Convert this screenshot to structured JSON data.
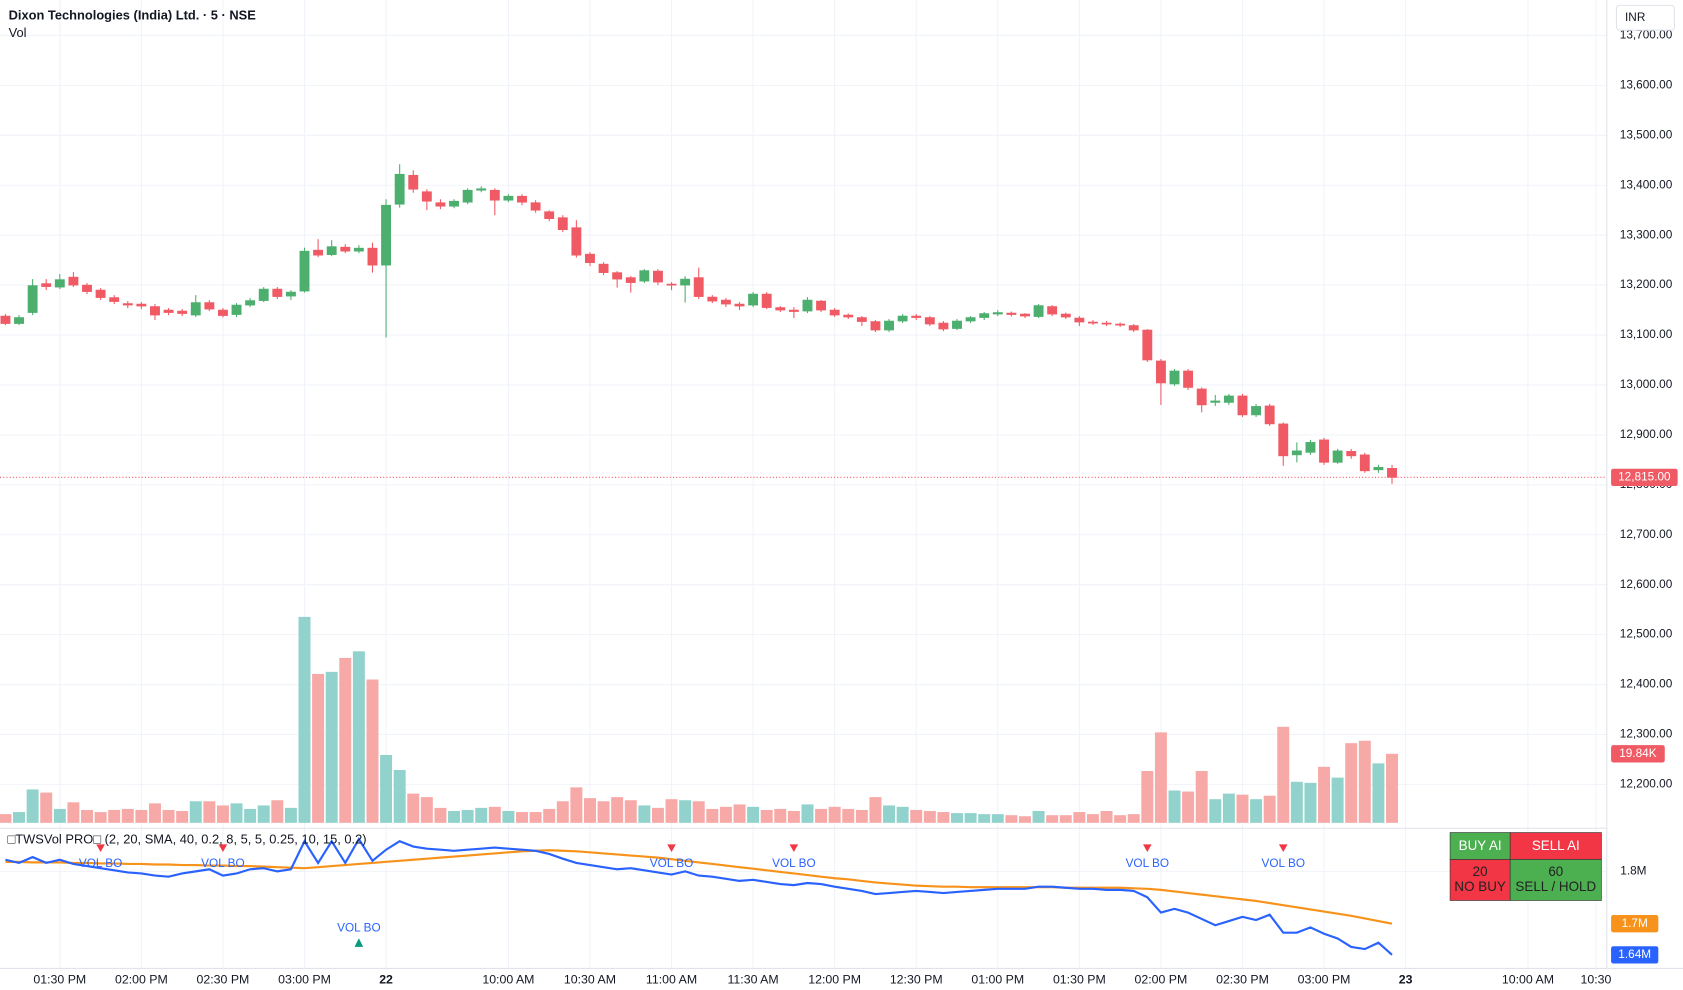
{
  "chart_data": [
    {
      "type": "candlestick",
      "title": "Dixon Technologies (India) Ltd. · 5 · NSE",
      "volume_title": "Vol",
      "currency": "INR",
      "open": [
        13138,
        13123,
        13145,
        13203,
        13196,
        13216,
        13200,
        13190,
        13175,
        13163,
        13162,
        13157,
        13150,
        13148,
        13140,
        13165,
        13150,
        13141,
        13160,
        13169,
        13192,
        13178,
        13188,
        13270,
        13261,
        13276,
        13268,
        13274,
        13240,
        13362,
        13420,
        13387,
        13365,
        13358,
        13366,
        13390,
        13390,
        13370,
        13378,
        13365,
        13347,
        13335,
        13315,
        13262,
        13242,
        13225,
        13215,
        13208,
        13228,
        13202,
        13200,
        13215,
        13176,
        13170,
        13162,
        13160,
        13182,
        13155,
        13150,
        13148,
        13168,
        13150,
        13140,
        13135,
        13127,
        13110,
        13128,
        13138,
        13135,
        13124,
        13113,
        13128,
        13135,
        13142,
        13144,
        13142,
        13137,
        13157,
        13142,
        13134,
        13126,
        13124,
        13122,
        13119,
        13110,
        13048,
        13002,
        13028,
        12992,
        12965,
        12965,
        12978,
        12940,
        12958,
        12922,
        12860,
        12865,
        12890,
        12845,
        12867,
        12860,
        12830,
        12833
      ],
      "high": [
        13142,
        13140,
        13212,
        13212,
        13222,
        13226,
        13204,
        13194,
        13180,
        13168,
        13166,
        13162,
        13154,
        13152,
        13180,
        13170,
        13154,
        13164,
        13174,
        13196,
        13196,
        13190,
        13275,
        13292,
        13290,
        13282,
        13280,
        13285,
        13372,
        13442,
        13430,
        13392,
        13372,
        13372,
        13394,
        13398,
        13394,
        13382,
        13382,
        13370,
        13350,
        13340,
        13330,
        13266,
        13246,
        13228,
        13218,
        13232,
        13232,
        13206,
        13218,
        13235,
        13180,
        13174,
        13166,
        13186,
        13186,
        13158,
        13156,
        13176,
        13170,
        13154,
        13143,
        13138,
        13130,
        13132,
        13142,
        13142,
        13138,
        13128,
        13132,
        13138,
        13146,
        13150,
        13147,
        13144,
        13162,
        13160,
        13145,
        13138,
        13130,
        13128,
        13125,
        13122,
        13112,
        13052,
        13032,
        13032,
        12995,
        12980,
        12982,
        12982,
        12962,
        12962,
        12925,
        12885,
        12890,
        12894,
        12872,
        12872,
        12864,
        12840,
        12840
      ],
      "low": [
        13120,
        13120,
        13140,
        13190,
        13192,
        13196,
        13182,
        13170,
        13162,
        13154,
        13152,
        13130,
        13140,
        13138,
        13136,
        13148,
        13135,
        13136,
        13156,
        13166,
        13172,
        13170,
        13185,
        13256,
        13258,
        13264,
        13264,
        13225,
        13095,
        13355,
        13385,
        13350,
        13352,
        13354,
        13362,
        13386,
        13340,
        13366,
        13360,
        13345,
        13328,
        13306,
        13255,
        13238,
        13220,
        13195,
        13185,
        13204,
        13200,
        13190,
        13165,
        13172,
        13164,
        13156,
        13150,
        13156,
        13152,
        13146,
        13134,
        13144,
        13146,
        13136,
        13132,
        13118,
        13106,
        13106,
        13124,
        13130,
        13118,
        13108,
        13110,
        13124,
        13130,
        13138,
        13137,
        13134,
        13134,
        13138,
        13132,
        13118,
        13120,
        13118,
        13116,
        13106,
        13046,
        12960,
        12998,
        12990,
        12945,
        12958,
        12960,
        12936,
        12936,
        12918,
        12838,
        12845,
        12860,
        12840,
        12842,
        12852,
        12824,
        12824,
        12802
      ],
      "close": [
        13123,
        13135,
        13199,
        13197,
        13211,
        13200,
        13187,
        13175,
        13167,
        13160,
        13158,
        13140,
        13145,
        13143,
        13165,
        13152,
        13139,
        13160,
        13169,
        13192,
        13177,
        13186,
        13268,
        13260,
        13277,
        13268,
        13274,
        13240,
        13360,
        13422,
        13392,
        13368,
        13358,
        13368,
        13390,
        13393,
        13370,
        13378,
        13366,
        13350,
        13333,
        13311,
        13260,
        13245,
        13225,
        13212,
        13205,
        13229,
        13206,
        13200,
        13212,
        13177,
        13168,
        13162,
        13158,
        13182,
        13155,
        13150,
        13147,
        13170,
        13150,
        13140,
        13136,
        13127,
        13110,
        13128,
        13138,
        13135,
        13122,
        13112,
        13128,
        13135,
        13143,
        13145,
        13141,
        13138,
        13159,
        13142,
        13136,
        13126,
        13124,
        13122,
        13120,
        13110,
        13050,
        13004,
        13028,
        12995,
        12960,
        12968,
        12978,
        12940,
        12957,
        12922,
        12858,
        12868,
        12885,
        12845,
        12868,
        12858,
        12828,
        12835,
        12815
      ],
      "volume": [
        2500,
        3100,
        9600,
        8700,
        4000,
        5900,
        3700,
        3100,
        3700,
        4000,
        3700,
        5600,
        3700,
        3400,
        6200,
        6200,
        5000,
        5600,
        4000,
        5000,
        6500,
        4300,
        59200,
        42800,
        43400,
        47400,
        49300,
        41200,
        19500,
        15200,
        8400,
        7400,
        4300,
        3400,
        3700,
        4300,
        4600,
        3400,
        3100,
        3100,
        4000,
        6200,
        10200,
        7100,
        6200,
        7400,
        6500,
        5000,
        4300,
        6800,
        6500,
        6200,
        4000,
        4600,
        5300,
        4600,
        3700,
        4000,
        3400,
        5300,
        4000,
        4600,
        4000,
        3700,
        7400,
        5000,
        4600,
        3700,
        3400,
        3100,
        2800,
        2800,
        2500,
        2500,
        2200,
        1900,
        3400,
        2200,
        2200,
        3100,
        2500,
        3400,
        2200,
        2500,
        14900,
        26000,
        9300,
        9000,
        14900,
        6800,
        8400,
        8100,
        6800,
        7800,
        27600,
        11800,
        11500,
        16100,
        13000,
        22900,
        23600,
        17100,
        19840
      ],
      "close_label": "12,815.00",
      "volume_label": "19.84K",
      "up_color": "#4caf6e",
      "down_color": "#f05a64",
      "volume_up_color": "#92d2cc",
      "volume_down_color": "#f7a9a7",
      "xlim": [
        -0.4,
        117.8
      ],
      "xticks": [
        {
          "value": 4,
          "label": "01:30 PM"
        },
        {
          "value": 10,
          "label": "02:00 PM"
        },
        {
          "value": 16,
          "label": "02:30 PM"
        },
        {
          "value": 22,
          "label": "03:00 PM"
        },
        {
          "value": 28,
          "label": "22"
        },
        {
          "value": 37,
          "label": "10:00 AM"
        },
        {
          "value": 43,
          "label": "10:30 AM"
        },
        {
          "value": 49,
          "label": "11:00 AM"
        },
        {
          "value": 55,
          "label": "11:30 AM"
        },
        {
          "value": 61,
          "label": "12:00 PM"
        },
        {
          "value": 67,
          "label": "12:30 PM"
        },
        {
          "value": 73,
          "label": "01:00 PM"
        },
        {
          "value": 79,
          "label": "01:30 PM"
        },
        {
          "value": 85,
          "label": "02:00 PM"
        },
        {
          "value": 91,
          "label": "02:30 PM"
        },
        {
          "value": 97,
          "label": "03:00 PM"
        },
        {
          "value": 103,
          "label": "23"
        },
        {
          "value": 112,
          "label": "10:00 AM"
        },
        {
          "value": 117,
          "label": "10:30"
        }
      ],
      "ylim": [
        12123,
        13771
      ],
      "yticks": [
        {
          "value": 12200,
          "label": "12,200.00"
        },
        {
          "value": 12300,
          "label": "12,300.00"
        },
        {
          "value": 12400,
          "label": "12,400.00"
        },
        {
          "value": 12500,
          "label": "12,500.00"
        },
        {
          "value": 12600,
          "label": "12,600.00"
        },
        {
          "value": 12700,
          "label": "12,700.00"
        },
        {
          "value": 12800,
          "label": "12,800.00"
        },
        {
          "value": 12900,
          "label": "12,900.00"
        },
        {
          "value": 13000,
          "label": "13,000.00"
        },
        {
          "value": 13100,
          "label": "13,100.00"
        },
        {
          "value": 13200,
          "label": "13,200.00"
        },
        {
          "value": 13300,
          "label": "13,300.00"
        },
        {
          "value": 13400,
          "label": "13,400.00"
        },
        {
          "value": 13500,
          "label": "13,500.00"
        },
        {
          "value": 13600,
          "label": "13,600.00"
        },
        {
          "value": 13700,
          "label": "13,700.00"
        }
      ],
      "grid": true
    },
    {
      "type": "line",
      "title": "□TWSVol PRO□ (2, 20, SMA, 40, 0.2, 8, 5, 5, 0.25, 10, 15, 0.2)",
      "xlim": [
        -0.4,
        117.8
      ],
      "ylim": [
        1622449,
        1873469
      ],
      "yticks": [
        {
          "value": 1800000,
          "label": "1.8M"
        }
      ],
      "series": [
        {
          "color": "#2962ff",
          "last_label": "1.64M",
          "values": [
            1822000,
            1816000,
            1827000,
            1816000,
            1822000,
            1814000,
            1810000,
            1806000,
            1802000,
            1798000,
            1796000,
            1792000,
            1790000,
            1796000,
            1800000,
            1804000,
            1792000,
            1796000,
            1804000,
            1806000,
            1800000,
            1804000,
            1857000,
            1816000,
            1857000,
            1816000,
            1861000,
            1820000,
            1841000,
            1857000,
            1847000,
            1843000,
            1841000,
            1839000,
            1841000,
            1843000,
            1845000,
            1843000,
            1841000,
            1839000,
            1833000,
            1824000,
            1816000,
            1812000,
            1808000,
            1804000,
            1806000,
            1802000,
            1798000,
            1794000,
            1800000,
            1792000,
            1790000,
            1786000,
            1782000,
            1784000,
            1780000,
            1776000,
            1774000,
            1778000,
            1776000,
            1771000,
            1767000,
            1763000,
            1757000,
            1759000,
            1761000,
            1763000,
            1761000,
            1759000,
            1761000,
            1763000,
            1765000,
            1767000,
            1767000,
            1767000,
            1771000,
            1771000,
            1769000,
            1767000,
            1767000,
            1765000,
            1765000,
            1763000,
            1751000,
            1722000,
            1729000,
            1722000,
            1710000,
            1698000,
            1706000,
            1714000,
            1708000,
            1718000,
            1684000,
            1684000,
            1694000,
            1682000,
            1673000,
            1657000,
            1653000,
            1665000,
            1642000
          ]
        },
        {
          "color": "#f7931a",
          "last_label": "1.7M",
          "values": [
            1818000,
            1818000,
            1817000,
            1817000,
            1817000,
            1816000,
            1816000,
            1815000,
            1815000,
            1814000,
            1814000,
            1813000,
            1813000,
            1812000,
            1812000,
            1811000,
            1811000,
            1810000,
            1810000,
            1809000,
            1808000,
            1807000,
            1806000,
            1808000,
            1810000,
            1812000,
            1814000,
            1816000,
            1818000,
            1820000,
            1822000,
            1824000,
            1826000,
            1828000,
            1830000,
            1832000,
            1834000,
            1836000,
            1838000,
            1839000,
            1840000,
            1839000,
            1838000,
            1836000,
            1834000,
            1832000,
            1830000,
            1828000,
            1826000,
            1823000,
            1820000,
            1817000,
            1814000,
            1811000,
            1808000,
            1805000,
            1802000,
            1799000,
            1796000,
            1793000,
            1790000,
            1787000,
            1785000,
            1782000,
            1779000,
            1777000,
            1775000,
            1773000,
            1772000,
            1771000,
            1771000,
            1770000,
            1770000,
            1770000,
            1770000,
            1770000,
            1770000,
            1770000,
            1769000,
            1769000,
            1769000,
            1769000,
            1769000,
            1768000,
            1767000,
            1765000,
            1762000,
            1759000,
            1756000,
            1753000,
            1750000,
            1747000,
            1744000,
            1740000,
            1736000,
            1732000,
            1728000,
            1724000,
            1720000,
            1716000,
            1711000,
            1706000,
            1701000
          ]
        }
      ],
      "signals": [
        {
          "index": 7,
          "label": "VOL BO",
          "direction": "down",
          "color": "#f23645"
        },
        {
          "index": 16,
          "label": "VOL BO",
          "direction": "down",
          "color": "#f23645"
        },
        {
          "index": 26,
          "label": "VOL BO",
          "direction": "up",
          "color": "#089981"
        },
        {
          "index": 49,
          "label": "VOL BO",
          "direction": "down",
          "color": "#f23645"
        },
        {
          "index": 58,
          "label": "VOL BO",
          "direction": "down",
          "color": "#f23645"
        },
        {
          "index": 84,
          "label": "VOL BO",
          "direction": "down",
          "color": "#f23645"
        },
        {
          "index": 94,
          "label": "VOL BO",
          "direction": "down",
          "color": "#f23645"
        }
      ]
    }
  ],
  "signal_table": {
    "buy_header": "BUY AI",
    "sell_header": "SELL AI",
    "buy_score": 20,
    "buy_verdict": "NO BUY",
    "sell_score": 60,
    "sell_verdict": "SELL / HOLD"
  }
}
